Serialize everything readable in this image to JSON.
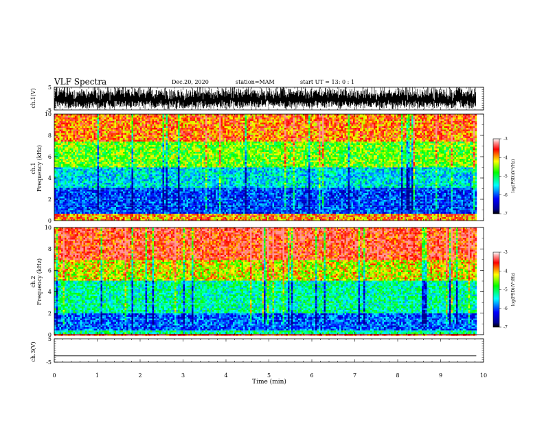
{
  "header": {
    "title": "VLF Spectra",
    "date": "Dec.20, 2020",
    "station": "station=MAM",
    "start": "start  UT =   13: 0  : 1"
  },
  "chart_data": [
    {
      "type": "line",
      "panel": "ch1-waveform",
      "ylabel": "ch.1(V)",
      "ylim": [
        -5,
        5
      ],
      "yticks": [
        "5",
        "-5"
      ],
      "xlim": [
        0,
        10
      ],
      "description_of_data": "dense waveform (spikes between about -5 and 5 V)"
    },
    {
      "type": "heatmap",
      "panel": "ch1-spectrogram",
      "ylabel_top": "ch.1",
      "ylabel": "Frequency (kHz)",
      "ylim": [
        0,
        10
      ],
      "yticks": [
        "0",
        "2",
        "4",
        "6",
        "8",
        "10"
      ],
      "xlim": [
        0,
        10
      ],
      "data_end_min": 9.83,
      "colorbar": {
        "label": "log(PSD)(V²/Hz)",
        "ticks": [
          "-3",
          "-4",
          "-5",
          "-6",
          "-7"
        ],
        "range": [
          -7,
          -3
        ]
      },
      "layers": [
        {
          "from_kHz": 0,
          "to_kHz": 0.6,
          "level": -3.8
        },
        {
          "from_kHz": 0.6,
          "to_kHz": 3,
          "level": -6.3
        },
        {
          "from_kHz": 3,
          "to_kHz": 5,
          "level": -5.6
        },
        {
          "from_kHz": 5,
          "to_kHz": 7.5,
          "level": -4.6
        },
        {
          "from_kHz": 7.5,
          "to_kHz": 10,
          "level": -3.7
        }
      ]
    },
    {
      "type": "heatmap",
      "panel": "ch2-spectrogram",
      "ylabel_top": "ch.2",
      "ylabel": "Frequency (kHz)",
      "ylim": [
        0,
        10
      ],
      "yticks": [
        "0",
        "2",
        "4",
        "6",
        "8",
        "10"
      ],
      "xlim": [
        0,
        10
      ],
      "data_end_min": 9.83,
      "colorbar": {
        "label": "log(PSD)(V²/Hz)",
        "ticks": [
          "-3",
          "-4",
          "-5",
          "-6",
          "-7"
        ],
        "range": [
          -7,
          -3
        ]
      },
      "layers": [
        {
          "from_kHz": 0,
          "to_kHz": 0.4,
          "level": -5.2
        },
        {
          "from_kHz": 0.4,
          "to_kHz": 2,
          "level": -6.2
        },
        {
          "from_kHz": 2,
          "to_kHz": 5,
          "level": -5.3
        },
        {
          "from_kHz": 5,
          "to_kHz": 7,
          "level": -4.2
        },
        {
          "from_kHz": 7,
          "to_kHz": 10,
          "level": -3.4
        }
      ]
    },
    {
      "type": "line",
      "panel": "ch3-waveform",
      "ylabel": "ch.3(V)",
      "ylim": [
        -5,
        5
      ],
      "yticks": [
        "5",
        "-5"
      ],
      "xlim": [
        0,
        10
      ],
      "values": [
        -2.3,
        -2.3
      ],
      "x": [
        0,
        9.83
      ]
    }
  ],
  "xaxis": {
    "label": "Time  (min)",
    "ticks": [
      "0",
      "1",
      "2",
      "3",
      "4",
      "5",
      "6",
      "7",
      "8",
      "9",
      "10"
    ],
    "range": [
      0,
      10
    ]
  }
}
